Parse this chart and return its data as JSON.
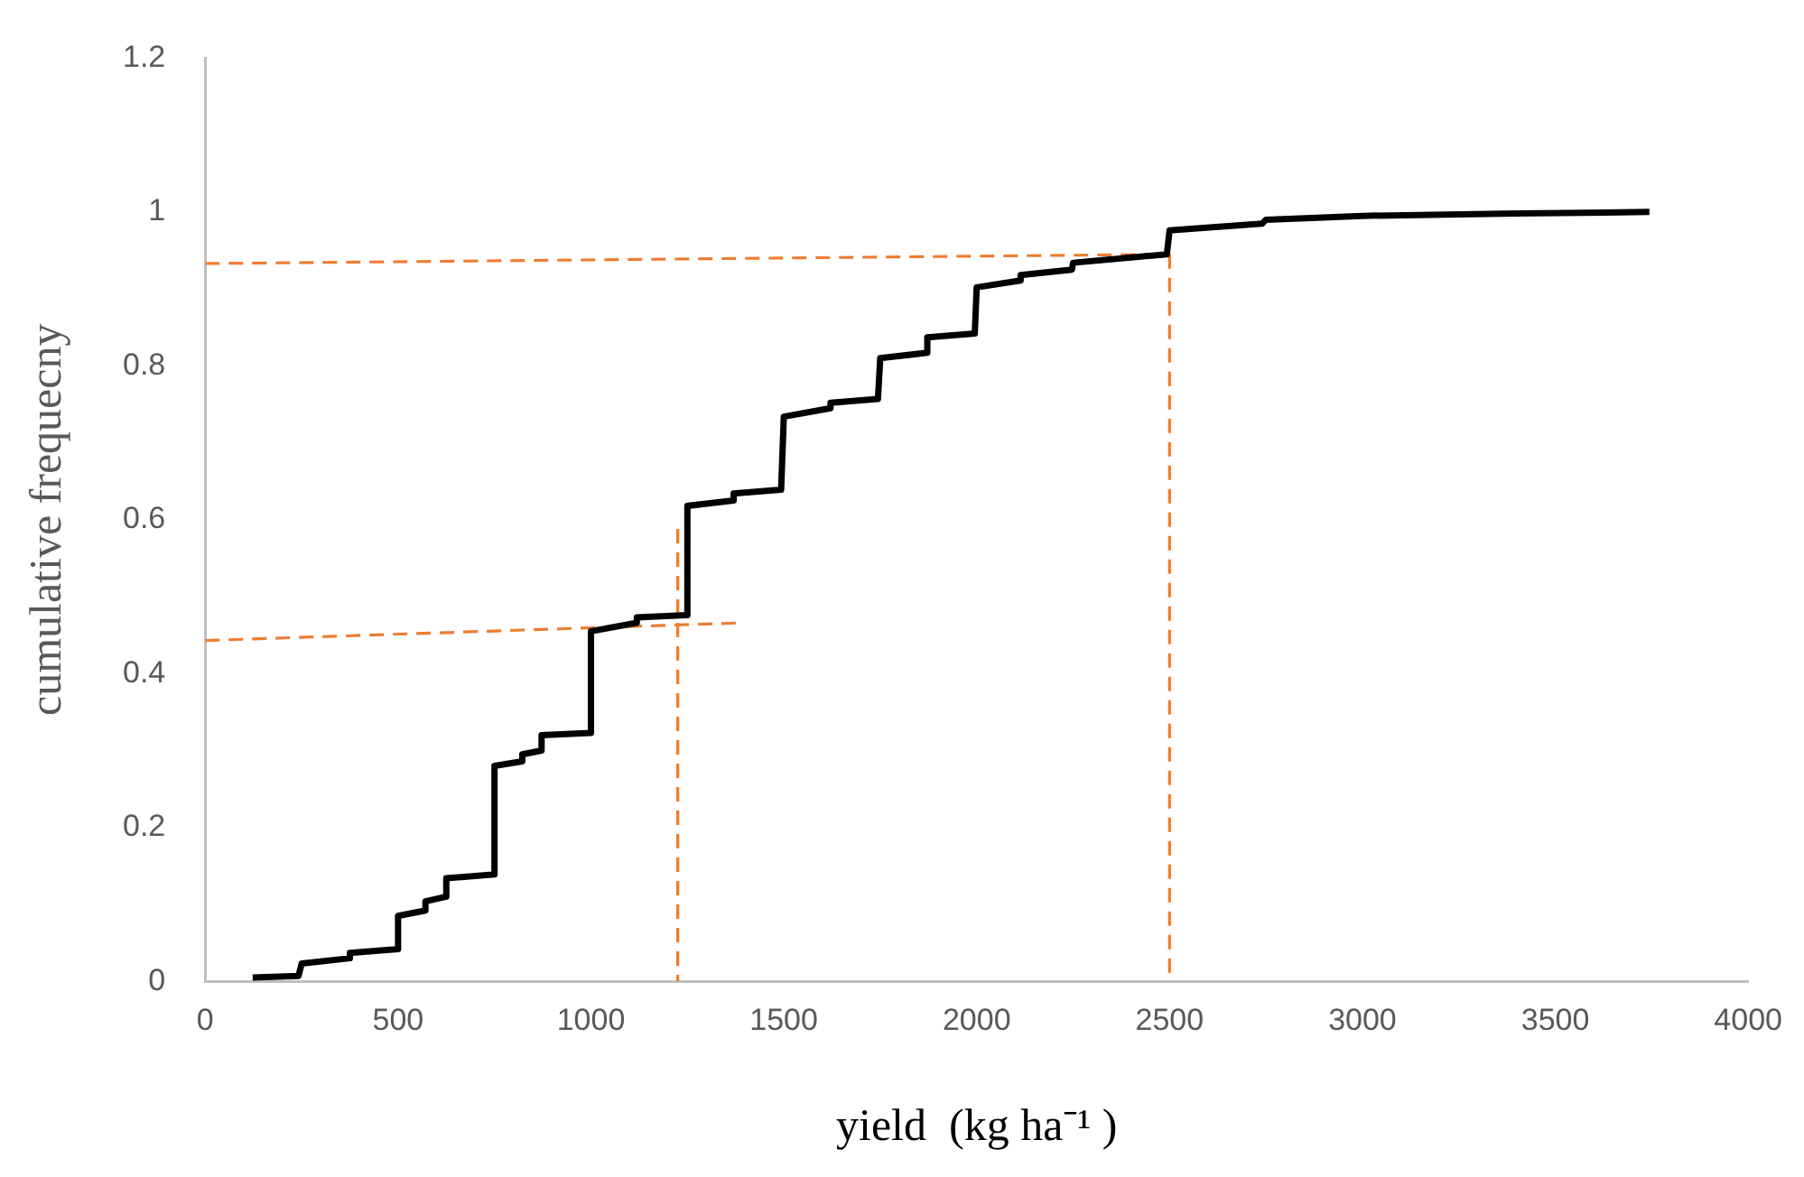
{
  "chart_data": {
    "type": "line",
    "xlabel": "yield  (kg ha⁻¹ )",
    "ylabel": "cumulative frequecny",
    "xlim": [
      0,
      4000
    ],
    "xticks": [
      0,
      500,
      1000,
      1500,
      2000,
      2500,
      3000,
      3500,
      4000
    ],
    "ylim": [
      0,
      1.2
    ],
    "yticks": [
      0,
      0.2,
      0.4,
      0.6,
      0.8,
      1,
      1.2
    ],
    "grid": false,
    "legend": false,
    "marker": "none",
    "series": [
      {
        "color": "#000000",
        "line_style": "solid",
        "x": [
          123,
          242,
          250,
          375,
          375,
          500,
          500,
          571,
          571,
          625,
          625,
          750,
          750,
          822,
          822,
          872,
          872,
          1000,
          1000,
          1119,
          1119,
          1247,
          1250,
          1370,
          1370,
          1493,
          1500,
          1621,
          1621,
          1744,
          1750,
          1872,
          1872,
          1995,
          2000,
          2114,
          2114,
          2247,
          2250,
          2493,
          2500,
          2740,
          2750,
          3000,
          3400,
          3744
        ],
        "values": [
          0.005,
          0.007,
          0.023,
          0.03,
          0.037,
          0.042,
          0.085,
          0.092,
          0.104,
          0.11,
          0.134,
          0.139,
          0.28,
          0.286,
          0.295,
          0.3,
          0.32,
          0.323,
          0.455,
          0.466,
          0.473,
          0.476,
          0.618,
          0.625,
          0.634,
          0.639,
          0.734,
          0.745,
          0.752,
          0.757,
          0.81,
          0.817,
          0.837,
          0.842,
          0.902,
          0.911,
          0.918,
          0.925,
          0.934,
          0.945,
          0.976,
          0.985,
          0.99,
          0.995,
          0.998,
          1.0
        ]
      },
      {
        "color": "#ed7d31",
        "line_style": "dashed",
        "x": [
          0,
          2500
        ],
        "values": [
          0.933,
          0.945
        ]
      },
      {
        "color": "#ed7d31",
        "line_style": "dashed",
        "x": [
          2500,
          2500
        ],
        "values": [
          0.945,
          0
        ]
      },
      {
        "color": "#ed7d31",
        "line_style": "dashed",
        "x": [
          0,
          1393
        ],
        "values": [
          0.443,
          0.466
        ]
      },
      {
        "color": "#ed7d31",
        "line_style": "dashed",
        "x": [
          1225,
          1225
        ],
        "values": [
          0.588,
          0
        ]
      }
    ]
  }
}
